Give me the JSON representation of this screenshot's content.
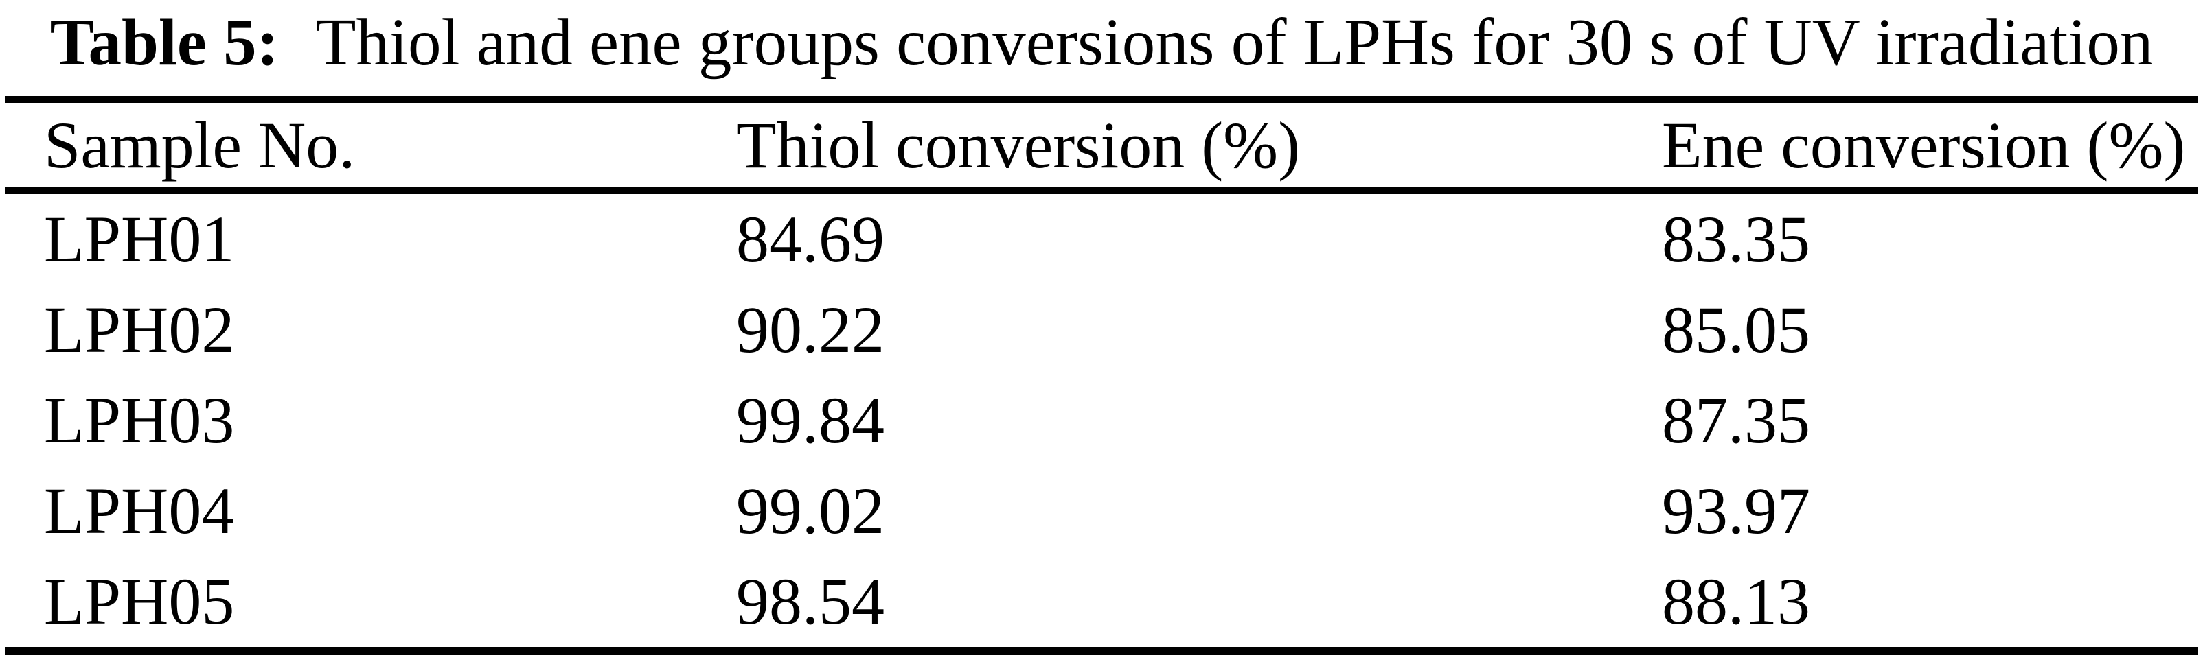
{
  "table": {
    "caption": {
      "label": "Table 5:",
      "text": "Thiol and ene groups conversions of LPHs for 30 s of UV irradiation"
    },
    "columns": {
      "sample": "Sample No.",
      "thiol": "Thiol conversion (%)",
      "ene": "Ene conversion (%)"
    },
    "rows": [
      {
        "sample": "LPH01",
        "thiol": "84.69",
        "ene": "83.35"
      },
      {
        "sample": "LPH02",
        "thiol": "90.22",
        "ene": "85.05"
      },
      {
        "sample": "LPH03",
        "thiol": "99.84",
        "ene": "87.35"
      },
      {
        "sample": "LPH04",
        "thiol": "99.02",
        "ene": "93.97"
      },
      {
        "sample": "LPH05",
        "thiol": "98.54",
        "ene": "88.13"
      }
    ],
    "colors": {
      "text": "#000000",
      "background": "#ffffff",
      "rule": "#000000"
    }
  }
}
